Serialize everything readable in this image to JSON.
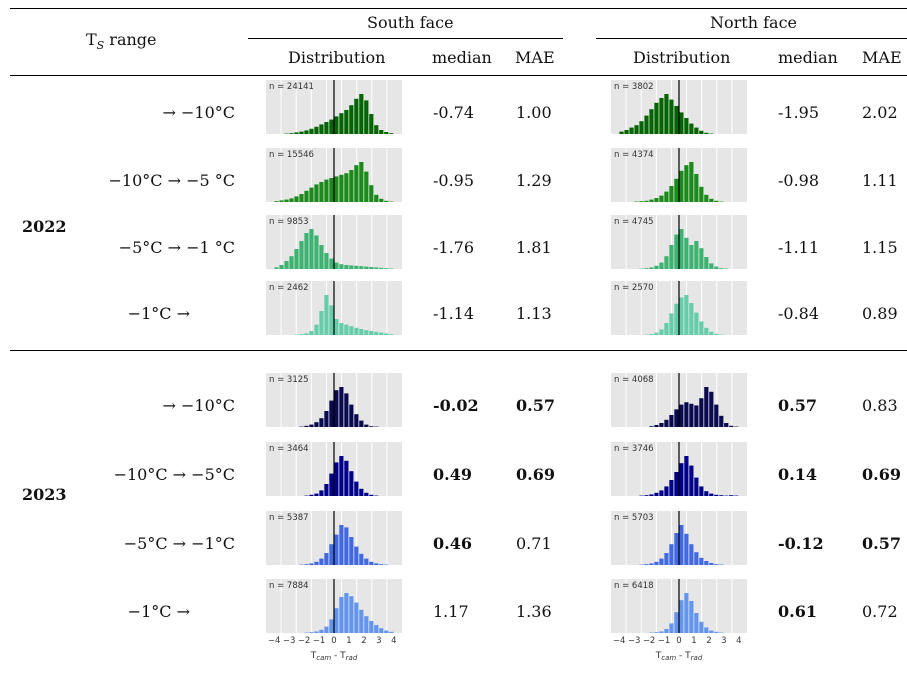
{
  "header": {
    "ts_range": "T",
    "ts_sub": "S",
    "ts_suffix": " range",
    "south_face": "South face",
    "north_face": "North face",
    "distribution": "Distribution",
    "median": "median",
    "mae": "MAE"
  },
  "axis": {
    "ticks": [
      "−4",
      "−3",
      "−2",
      "−1",
      "0",
      "1",
      "2",
      "3",
      "4"
    ],
    "label_main_1": "T",
    "label_sub_1": "cam",
    "label_mid": " - T",
    "label_sub_2": "rad"
  },
  "colors": {
    "g2022": [
      "#006400",
      "#1a8a1a",
      "#3cb371",
      "#66cdaa"
    ],
    "b2023": [
      "#0a0a50",
      "#00008b",
      "#4169e1",
      "#6495ed"
    ],
    "panel_bg": "#e6e6e6"
  },
  "years": [
    {
      "year": "2022",
      "rows": [
        {
          "range": "→ −10°C",
          "south": {
            "n": "n = 24141",
            "median": "-0.74",
            "mae": "1.00",
            "median_bold": false,
            "mae_bold": false,
            "bars": [
              0,
              0,
              1,
              2,
              4,
              6,
              9,
              13,
              18,
              24,
              30,
              36,
              44,
              52,
              60,
              72,
              88,
              100,
              84,
              50,
              22,
              10,
              5,
              2
            ]
          },
          "north": {
            "n": "n = 3802",
            "median": "-1.95",
            "mae": "2.02",
            "median_bold": false,
            "mae_bold": false,
            "bars": [
              6,
              10,
              16,
              22,
              32,
              46,
              62,
              78,
              90,
              100,
              86,
              70,
              54,
              40,
              26,
              16,
              8,
              3,
              1,
              0,
              0,
              0,
              0,
              0
            ]
          }
        },
        {
          "range": "−10°C → −5 °C",
          "south": {
            "n": "n = 15546",
            "median": "-0.95",
            "mae": "1.29",
            "median_bold": false,
            "mae_bold": false,
            "bars": [
              2,
              4,
              6,
              9,
              14,
              20,
              28,
              36,
              44,
              50,
              56,
              60,
              64,
              68,
              72,
              80,
              92,
              100,
              76,
              42,
              18,
              8,
              3,
              1
            ]
          },
          "north": {
            "n": "n = 4374",
            "median": "-0.98",
            "mae": "1.11",
            "median_bold": false,
            "mae_bold": false,
            "bars": [
              0,
              0,
              0,
              1,
              2,
              3,
              6,
              10,
              16,
              26,
              40,
              58,
              78,
              92,
              100,
              70,
              38,
              18,
              8,
              3,
              1,
              0,
              0,
              0
            ]
          }
        },
        {
          "range": "−5°C → −1 °C",
          "south": {
            "n": "n = 9853",
            "median": "-1.76",
            "mae": "1.81",
            "median_bold": false,
            "mae_bold": false,
            "bars": [
              4,
              10,
              20,
              32,
              50,
              70,
              90,
              100,
              84,
              60,
              40,
              26,
              16,
              12,
              10,
              9,
              8,
              7,
              6,
              5,
              4,
              3,
              2,
              1
            ]
          },
          "north": {
            "n": "n = 4745",
            "median": "-1.11",
            "mae": "1.15",
            "median_bold": false,
            "mae_bold": false,
            "bars": [
              0,
              0,
              0,
              0,
              1,
              2,
              4,
              8,
              16,
              32,
              60,
              86,
              100,
              78,
              60,
              70,
              52,
              30,
              14,
              6,
              2,
              1,
              0,
              0
            ]
          }
        },
        {
          "range": "−1°C →",
          "south": {
            "n": "n = 2462",
            "median": "-1.14",
            "mae": "1.13",
            "median_bold": false,
            "mae_bold": false,
            "bars": [
              0,
              0,
              0,
              0,
              1,
              2,
              4,
              10,
              26,
              60,
              100,
              74,
              40,
              30,
              26,
              22,
              18,
              15,
              12,
              10,
              8,
              6,
              4,
              2
            ]
          },
          "north": {
            "n": "n = 2570",
            "median": "-0.84",
            "mae": "0.89",
            "median_bold": false,
            "mae_bold": false,
            "bars": [
              0,
              0,
              0,
              0,
              0,
              1,
              2,
              6,
              14,
              30,
              54,
              78,
              94,
              100,
              80,
              56,
              34,
              18,
              8,
              3,
              1,
              0,
              0,
              0
            ]
          }
        }
      ]
    },
    {
      "year": "2023",
      "rows": [
        {
          "range": "→ −10°C",
          "south": {
            "n": "n = 3125",
            "median": "-0.02",
            "mae": "0.57",
            "median_bold": true,
            "mae_bold": true,
            "bars": [
              0,
              0,
              0,
              0,
              0,
              1,
              3,
              6,
              12,
              22,
              40,
              66,
              92,
              100,
              84,
              56,
              32,
              16,
              6,
              2,
              1,
              0,
              0,
              0
            ]
          },
          "north": {
            "n": "n = 4068",
            "median": "0.57",
            "mae": "0.83",
            "median_bold": true,
            "mae_bold": false,
            "bars": [
              0,
              0,
              0,
              0,
              0,
              0,
              2,
              5,
              10,
              18,
              30,
              44,
              56,
              62,
              58,
              54,
              72,
              100,
              88,
              56,
              28,
              10,
              3,
              1
            ]
          }
        },
        {
          "range": "−10°C → −5°C",
          "south": {
            "n": "n = 3464",
            "median": "0.49",
            "mae": "0.69",
            "median_bold": true,
            "mae_bold": true,
            "bars": [
              0,
              0,
              0,
              0,
              0,
              0,
              1,
              3,
              6,
              14,
              30,
              56,
              84,
              100,
              88,
              62,
              36,
              18,
              8,
              3,
              1,
              0,
              0,
              0
            ]
          },
          "north": {
            "n": "n = 3746",
            "median": "0.14",
            "mae": "0.69",
            "median_bold": true,
            "mae_bold": true,
            "bars": [
              0,
              0,
              0,
              0,
              1,
              2,
              4,
              8,
              14,
              24,
              40,
              60,
              82,
              100,
              76,
              46,
              24,
              12,
              6,
              3,
              2,
              1,
              2,
              1
            ]
          }
        },
        {
          "range": "−5°C → −1°C",
          "south": {
            "n": "n = 5387",
            "median": "0.46",
            "mae": "0.71",
            "median_bold": true,
            "mae_bold": false,
            "bars": [
              0,
              0,
              0,
              0,
              0,
              1,
              2,
              4,
              8,
              16,
              30,
              52,
              76,
              100,
              94,
              70,
              46,
              28,
              16,
              8,
              4,
              2,
              1,
              0
            ]
          },
          "north": {
            "n": "n = 5703",
            "median": "-0.12",
            "mae": "0.57",
            "median_bold": true,
            "mae_bold": true,
            "bars": [
              0,
              0,
              0,
              0,
              1,
              2,
              4,
              8,
              16,
              30,
              52,
              80,
              100,
              78,
              52,
              32,
              18,
              10,
              5,
              2,
              1,
              0,
              0,
              0
            ]
          }
        },
        {
          "range": "−1°C →",
          "south": {
            "n": "n = 7884",
            "median": "1.17",
            "mae": "1.36",
            "median_bold": false,
            "mae_bold": false,
            "bars": [
              0,
              0,
              0,
              0,
              0,
              0,
              1,
              2,
              4,
              8,
              16,
              34,
              62,
              90,
              100,
              92,
              76,
              58,
              42,
              30,
              20,
              12,
              6,
              3
            ]
          },
          "north": {
            "n": "n = 6418",
            "median": "0.61",
            "mae": "0.72",
            "median_bold": true,
            "mae_bold": false,
            "bars": [
              0,
              0,
              0,
              0,
              0,
              0,
              1,
              2,
              4,
              10,
              24,
              52,
              82,
              100,
              80,
              50,
              28,
              14,
              6,
              3,
              1,
              0,
              0,
              0
            ]
          }
        }
      ]
    }
  ]
}
